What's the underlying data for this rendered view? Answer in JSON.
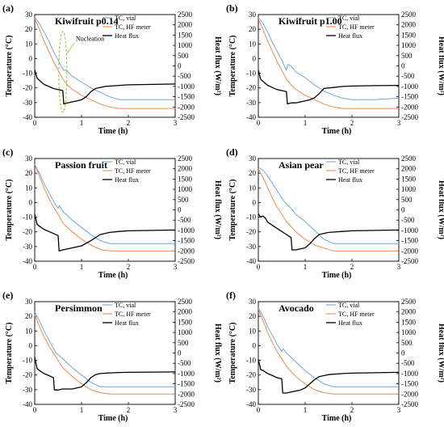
{
  "figure": {
    "legend_labels": [
      "TC, vial",
      "TC, HF meter",
      "Heat flux"
    ],
    "colors": {
      "tc_vial": "#6fa8dc",
      "tc_hf": "#f08a4b",
      "heat_flux": "#000000",
      "annotation": "#9acd32"
    }
  },
  "chart_data": [
    {
      "type": "line",
      "panel_label": "(a)",
      "title": "Kiwifruit p0.14",
      "xlabel": "Time (h)",
      "ylabel": "Temperature (°C)",
      "y2label": "Heat flux (W/m²)",
      "xlim": [
        0,
        3
      ],
      "ylim": [
        -40,
        30
      ],
      "y2lim": [
        -2500,
        2500
      ],
      "xticks": [
        "0",
        "1",
        "2",
        "3"
      ],
      "yticks": [
        "30",
        "20",
        "10",
        "0",
        "-10",
        "-20",
        "-30",
        "-40"
      ],
      "y2ticks": [
        "2500",
        "2000",
        "1500",
        "1000",
        "500",
        "0",
        "-500",
        "-1000",
        "-1500",
        "-2000",
        "-2500"
      ],
      "annotation": {
        "text": "Nucleation"
      },
      "legend_position": "top-right",
      "series": [
        {
          "name": "TC, vial",
          "axis": "left",
          "x": [
            0,
            0.1,
            0.2,
            0.3,
            0.4,
            0.5,
            0.58,
            0.62,
            0.68,
            0.8,
            1.0,
            1.2,
            1.4,
            1.6,
            1.8,
            2.0,
            2.5,
            3.0
          ],
          "y": [
            28,
            24,
            18,
            12,
            5,
            -1,
            -6,
            -8,
            -8,
            -12,
            -16,
            -20,
            -23,
            -26,
            -28,
            -28,
            -28,
            -28
          ]
        },
        {
          "name": "TC, HF meter",
          "axis": "left",
          "x": [
            0,
            0.1,
            0.2,
            0.3,
            0.4,
            0.5,
            0.6,
            0.7,
            0.8,
            1.0,
            1.2,
            1.4,
            1.6,
            1.8,
            2.0,
            2.5,
            3.0
          ],
          "y": [
            27,
            20,
            12,
            5,
            -2,
            -8,
            -14,
            -18,
            -21,
            -25,
            -28,
            -31,
            -33,
            -34,
            -34,
            -34,
            -34
          ]
        },
        {
          "name": "Heat flux",
          "axis": "right",
          "x": [
            0,
            0.05,
            0.1,
            0.2,
            0.3,
            0.4,
            0.5,
            0.6,
            0.62,
            0.7,
            0.8,
            0.9,
            1.0,
            1.1,
            1.2,
            1.3,
            1.5,
            1.8,
            2.0,
            2.5,
            3.0
          ],
          "y": [
            -200,
            -600,
            -700,
            -900,
            -1000,
            -1100,
            -1150,
            -1200,
            -1850,
            -1800,
            -1750,
            -1700,
            -1650,
            -1500,
            -1250,
            -1100,
            -1000,
            -950,
            -920,
            -900,
            -880
          ]
        }
      ]
    },
    {
      "type": "line",
      "panel_label": "(b)",
      "title": "Kiwifruit p1.00",
      "xlabel": "Time (h)",
      "ylabel": "Temperature (°C)",
      "y2label": "Heat flux (W/m²)",
      "xlim": [
        0,
        3
      ],
      "ylim": [
        -40,
        30
      ],
      "y2lim": [
        -2500,
        2500
      ],
      "xticks": [
        "0",
        "1",
        "2",
        "3"
      ],
      "yticks": [
        "30",
        "20",
        "10",
        "0",
        "-10",
        "-20",
        "-30",
        "-40"
      ],
      "y2ticks": [
        "2500",
        "2000",
        "1500",
        "1000",
        "500",
        "0",
        "-500",
        "-1000",
        "-1500",
        "-2000",
        "-2500"
      ],
      "legend_position": "top-right",
      "series": [
        {
          "name": "TC, vial",
          "axis": "left",
          "x": [
            0,
            0.1,
            0.2,
            0.3,
            0.4,
            0.5,
            0.6,
            0.63,
            0.7,
            0.8,
            1.0,
            1.2,
            1.4,
            1.6,
            1.8,
            2.0,
            2.5,
            3.0
          ],
          "y": [
            28,
            24,
            18,
            11,
            5,
            -1,
            -8,
            -4,
            -5,
            -9,
            -13,
            -18,
            -22,
            -25,
            -27,
            -28,
            -28,
            -27
          ]
        },
        {
          "name": "TC, HF meter",
          "axis": "left",
          "x": [
            0,
            0.1,
            0.2,
            0.3,
            0.4,
            0.5,
            0.6,
            0.7,
            0.8,
            1.0,
            1.2,
            1.4,
            1.6,
            1.8,
            2.0,
            2.5,
            3.0
          ],
          "y": [
            27,
            20,
            12,
            5,
            -2,
            -8,
            -14,
            -18,
            -21,
            -25,
            -28,
            -31,
            -33,
            -34,
            -34,
            -34,
            -34
          ]
        },
        {
          "name": "Heat flux",
          "axis": "right",
          "x": [
            0,
            0.05,
            0.1,
            0.2,
            0.3,
            0.4,
            0.5,
            0.6,
            0.62,
            0.7,
            0.8,
            0.9,
            1.0,
            1.1,
            1.2,
            1.3,
            1.4,
            1.6,
            1.8,
            2.0,
            2.5,
            3.0
          ],
          "y": [
            -200,
            -650,
            -750,
            -950,
            -1050,
            -1150,
            -1200,
            -1250,
            -1850,
            -1800,
            -1800,
            -1750,
            -1700,
            -1650,
            -1550,
            -1350,
            -1100,
            -1050,
            -1000,
            -980,
            -960,
            -950
          ]
        }
      ]
    },
    {
      "type": "line",
      "panel_label": "(c)",
      "title": "Passion fruit",
      "xlabel": "Time (h)",
      "ylabel": "Temperature (°C)",
      "y2label": "Heat flux (W/m²)",
      "xlim": [
        0,
        3
      ],
      "ylim": [
        -40,
        30
      ],
      "y2lim": [
        -2500,
        2500
      ],
      "xticks": [
        "0",
        "1",
        "2",
        "3"
      ],
      "yticks": [
        "30",
        "20",
        "10",
        "0",
        "-10",
        "-20",
        "-30",
        "-40"
      ],
      "y2ticks": [
        "2500",
        "2000",
        "1500",
        "1000",
        "500",
        "0",
        "-500",
        "-1000",
        "-1500",
        "-2000",
        "-2500"
      ],
      "legend_position": "top-right",
      "series": [
        {
          "name": "TC, vial",
          "axis": "left",
          "x": [
            0,
            0.1,
            0.2,
            0.3,
            0.4,
            0.5,
            0.53,
            0.6,
            0.8,
            1.0,
            1.2,
            1.4,
            1.6,
            1.8,
            2.0,
            2.5,
            3.0
          ],
          "y": [
            26,
            20,
            13,
            7,
            1,
            -4,
            -2,
            -6,
            -12,
            -17,
            -22,
            -26,
            -28,
            -28,
            -28,
            -28,
            -28
          ]
        },
        {
          "name": "TC, HF meter",
          "axis": "left",
          "x": [
            0,
            0.1,
            0.2,
            0.3,
            0.4,
            0.5,
            0.6,
            0.8,
            1.0,
            1.2,
            1.4,
            1.6,
            1.8,
            2.0,
            2.5,
            3.0
          ],
          "y": [
            26,
            18,
            10,
            3,
            -3,
            -8,
            -14,
            -20,
            -25,
            -29,
            -32,
            -33,
            -33,
            -33,
            -33,
            -33
          ]
        },
        {
          "name": "Heat flux",
          "axis": "right",
          "x": [
            0,
            0.05,
            0.1,
            0.2,
            0.3,
            0.4,
            0.5,
            0.52,
            0.6,
            0.7,
            0.8,
            1.0,
            1.2,
            1.4,
            1.6,
            1.8,
            2.0,
            2.5,
            3.0
          ],
          "y": [
            -200,
            -700,
            -800,
            -950,
            -1050,
            -1150,
            -1250,
            -2000,
            -1950,
            -1900,
            -1850,
            -1750,
            -1500,
            -1200,
            -1100,
            -1050,
            -1020,
            -1000,
            -980
          ]
        }
      ]
    },
    {
      "type": "line",
      "panel_label": "(d)",
      "title": "Asian pear",
      "xlabel": "Time (h)",
      "ylabel": "Temperature (°C)",
      "y2label": "Heat flux (W/m²)",
      "xlim": [
        0,
        3
      ],
      "ylim": [
        -40,
        30
      ],
      "y2lim": [
        -2500,
        2500
      ],
      "xticks": [
        "0",
        "1",
        "2",
        "3"
      ],
      "yticks": [
        "30",
        "20",
        "10",
        "0",
        "-10",
        "-20",
        "-30",
        "-40"
      ],
      "y2ticks": [
        "2500",
        "2000",
        "1500",
        "1000",
        "500",
        "0",
        "-500",
        "-1000",
        "-1500",
        "-2000",
        "-2500"
      ],
      "legend_position": "top-right",
      "series": [
        {
          "name": "TC, vial",
          "axis": "left",
          "x": [
            0,
            0.1,
            0.2,
            0.3,
            0.4,
            0.5,
            0.6,
            0.7,
            0.8,
            1.0,
            1.2,
            1.4,
            1.6,
            1.8,
            2.0,
            2.5,
            3.0
          ],
          "y": [
            24,
            22,
            18,
            13,
            8,
            3,
            -1,
            -4,
            -8,
            -13,
            -19,
            -25,
            -28,
            -28,
            -28,
            -28,
            -28
          ]
        },
        {
          "name": "TC, HF meter",
          "axis": "left",
          "x": [
            0,
            0.1,
            0.2,
            0.3,
            0.4,
            0.5,
            0.6,
            0.8,
            1.0,
            1.2,
            1.4,
            1.6,
            1.8,
            2.0,
            2.5,
            3.0
          ],
          "y": [
            23,
            17,
            10,
            3,
            -3,
            -8,
            -13,
            -20,
            -25,
            -29,
            -31,
            -33,
            -33,
            -33,
            -33,
            -33
          ]
        },
        {
          "name": "Heat flux",
          "axis": "right",
          "x": [
            0,
            0.05,
            0.1,
            0.15,
            0.2,
            0.3,
            0.4,
            0.5,
            0.6,
            0.7,
            0.72,
            0.8,
            0.9,
            1.0,
            1.1,
            1.2,
            1.3,
            1.5,
            1.8,
            2.0,
            2.5,
            3.0
          ],
          "y": [
            -200,
            -350,
            -300,
            -400,
            -600,
            -750,
            -900,
            -1050,
            -1200,
            -1350,
            -1950,
            -1950,
            -1900,
            -1850,
            -1650,
            -1400,
            -1200,
            -1100,
            -1050,
            -1020,
            -1000,
            -980
          ]
        }
      ]
    },
    {
      "type": "line",
      "panel_label": "(e)",
      "title": "Persimmon",
      "xlabel": "Time (h)",
      "ylabel": "Temperature (°C)",
      "y2label": "Heat flux (W/m²)",
      "xlim": [
        0,
        3
      ],
      "ylim": [
        -40,
        30
      ],
      "y2lim": [
        -2500,
        2500
      ],
      "xticks": [
        "0",
        "1",
        "2",
        "3"
      ],
      "yticks": [
        "30",
        "20",
        "10",
        "0",
        "-10",
        "-20",
        "-30",
        "-40"
      ],
      "y2ticks": [
        "2500",
        "2000",
        "1500",
        "1000",
        "500",
        "0",
        "-500",
        "-1000",
        "-1500",
        "-2000",
        "-2500"
      ],
      "legend_position": "top-right",
      "series": [
        {
          "name": "TC, vial",
          "axis": "left",
          "x": [
            0,
            0.1,
            0.2,
            0.3,
            0.42,
            0.45,
            0.5,
            0.6,
            0.8,
            1.0,
            1.2,
            1.4,
            1.6,
            1.8,
            2.0,
            2.5,
            3.0
          ],
          "y": [
            23,
            17,
            10,
            4,
            -3,
            -5,
            -6,
            -9,
            -15,
            -20,
            -25,
            -28,
            -28,
            -28,
            -28,
            -28,
            -28
          ]
        },
        {
          "name": "TC, HF meter",
          "axis": "left",
          "x": [
            0,
            0.1,
            0.2,
            0.3,
            0.4,
            0.5,
            0.6,
            0.8,
            1.0,
            1.2,
            1.4,
            1.6,
            1.8,
            2.0,
            2.5,
            3.0
          ],
          "y": [
            21,
            13,
            6,
            0,
            -5,
            -10,
            -15,
            -21,
            -26,
            -30,
            -32,
            -33,
            -33,
            -33,
            -33,
            -33
          ]
        },
        {
          "name": "Heat flux",
          "axis": "right",
          "x": [
            0,
            0.05,
            0.1,
            0.2,
            0.3,
            0.4,
            0.42,
            0.5,
            0.6,
            0.8,
            1.0,
            1.1,
            1.2,
            1.3,
            1.4,
            1.6,
            1.8,
            2.0,
            2.5,
            3.0
          ],
          "y": [
            -200,
            -750,
            -850,
            -1000,
            -1100,
            -1200,
            -1800,
            -1800,
            -1750,
            -1750,
            -1650,
            -1450,
            -1200,
            -1050,
            -1000,
            -970,
            -950,
            -940,
            -930,
            -920
          ]
        }
      ]
    },
    {
      "type": "line",
      "panel_label": "(f)",
      "title": "Avocado",
      "xlabel": "Time (h)",
      "ylabel": "Temperature (°C)",
      "y2label": "Heat flux (W/m²)",
      "xlim": [
        0,
        3
      ],
      "ylim": [
        -40,
        30
      ],
      "y2lim": [
        -2500,
        2500
      ],
      "xticks": [
        "0",
        "1",
        "2",
        "3"
      ],
      "yticks": [
        "30",
        "20",
        "10",
        "0",
        "-10",
        "-20",
        "-30",
        "-40"
      ],
      "y2ticks": [
        "2500",
        "2000",
        "1500",
        "1000",
        "500",
        "0",
        "-500",
        "-1000",
        "-1500",
        "-2000",
        "-2500"
      ],
      "legend_position": "top-right",
      "series": [
        {
          "name": "TC, vial",
          "axis": "left",
          "x": [
            0,
            0.1,
            0.2,
            0.3,
            0.4,
            0.5,
            0.53,
            0.6,
            0.8,
            1.0,
            1.2,
            1.4,
            1.6,
            1.8,
            2.0,
            2.5,
            3.0
          ],
          "y": [
            26,
            20,
            13,
            7,
            1,
            -4,
            -2,
            -5,
            -11,
            -17,
            -22,
            -26,
            -28,
            -28,
            -28,
            -28,
            -28
          ]
        },
        {
          "name": "TC, HF meter",
          "axis": "left",
          "x": [
            0,
            0.1,
            0.2,
            0.3,
            0.4,
            0.5,
            0.6,
            0.8,
            1.0,
            1.2,
            1.4,
            1.6,
            1.8,
            2.0,
            2.5,
            3.0
          ],
          "y": [
            25,
            17,
            9,
            2,
            -4,
            -9,
            -14,
            -21,
            -26,
            -30,
            -32,
            -33,
            -33,
            -33,
            -33,
            -33
          ]
        },
        {
          "name": "Heat flux",
          "axis": "right",
          "x": [
            0,
            0.05,
            0.1,
            0.2,
            0.3,
            0.4,
            0.5,
            0.52,
            0.6,
            0.7,
            0.8,
            0.9,
            1.0,
            1.1,
            1.2,
            1.3,
            1.5,
            1.8,
            2.0,
            2.5,
            3.0
          ],
          "y": [
            -300,
            -800,
            -850,
            -1000,
            -1100,
            -1200,
            -1250,
            -1950,
            -1950,
            -1900,
            -1850,
            -1800,
            -1700,
            -1500,
            -1300,
            -1150,
            -1050,
            -1000,
            -980,
            -960,
            -940
          ]
        }
      ]
    }
  ]
}
